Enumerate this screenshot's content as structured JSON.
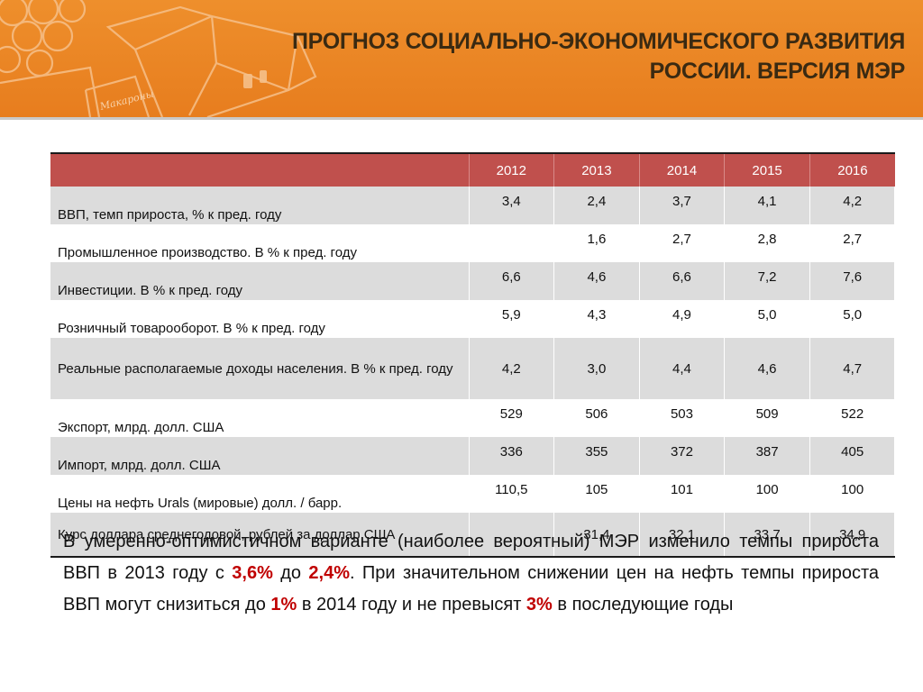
{
  "header": {
    "title_line1": "ПРОГНОЗ СОЦИАЛЬНО-ЭКОНОМИЧЕСКОГО РАЗВИТИЯ",
    "title_line2": "РОССИИ. ВЕРСИЯ МЭР",
    "accent_color": "#e98523",
    "decorative_image": "cardboard-boxes-outline",
    "decorative_label": "Макароны"
  },
  "table": {
    "header_color": "#c0504d",
    "stripe_color": "#dcdcdc",
    "corner": "",
    "years": [
      "2012",
      "2013",
      "2014",
      "2015",
      "2016"
    ],
    "rows": [
      {
        "label": "ВВП, темп прироста, % к пред. году",
        "values": [
          "3,4",
          "2,4",
          "3,7",
          "4,1",
          "4,2"
        ]
      },
      {
        "label": "Промышленное производство. В % к пред. году",
        "values": [
          "",
          "1,6",
          "2,7",
          "2,8",
          "2,7"
        ]
      },
      {
        "label": "Инвестиции. В % к пред. году",
        "values": [
          "6,6",
          "4,6",
          "6,6",
          "7,2",
          "7,6"
        ]
      },
      {
        "label": "Розничный товарооборот. В % к пред. году",
        "values": [
          "5,9",
          "4,3",
          "4,9",
          "5,0",
          "5,0"
        ]
      },
      {
        "label": "Реальные располагаемые доходы населения. В % к пред. году",
        "values": [
          "4,2",
          "3,0",
          "4,4",
          "4,6",
          "4,7"
        ]
      },
      {
        "label": "Экспорт, млрд. долл. США",
        "values": [
          "529",
          "506",
          "503",
          "509",
          "522"
        ]
      },
      {
        "label": "Импорт, млрд. долл. США",
        "values": [
          "336",
          "355",
          "372",
          "387",
          "405"
        ]
      },
      {
        "label": "Цены на нефть Urals (мировые) долл. / барр.",
        "values": [
          "110,5",
          "105",
          "101",
          "100",
          "100"
        ]
      },
      {
        "label": "Курс доллара среднегодовой, рублей за доллар США",
        "values": [
          "",
          "31,4",
          "32,1",
          "33,7",
          "34,9"
        ]
      }
    ]
  },
  "summary": {
    "highlight_color": "#c00000",
    "part1": "В умеренно-оптимистичном варианте (наиболее вероятный) МЭР изменило темпы прироста ВВП в 2013 году с ",
    "hl1": "3,6%",
    "part2": " до ",
    "hl2": "2,4%",
    "part3": ". При значительном снижении цен на нефть  темпы прироста ВВП могут снизиться до ",
    "hl3": "1%",
    "part4": " в 2014 году и не превысят ",
    "hl4": "3%",
    "part5": " в последующие годы"
  }
}
